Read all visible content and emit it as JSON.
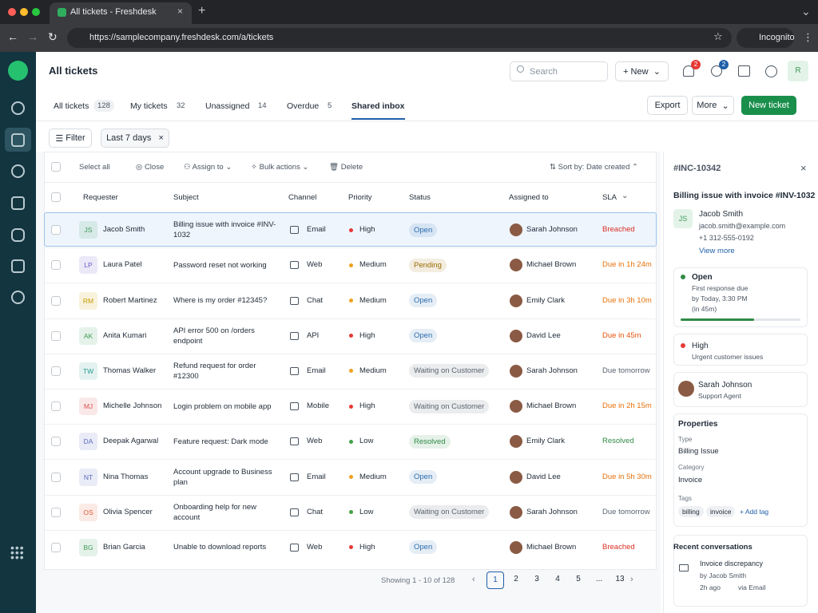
{
  "browser": {
    "tab_title": "All tickets - Freshdesk",
    "url": "https://samplecompany.freshdesk.com/a/tickets",
    "profile": "Incognito"
  },
  "header": {
    "title": "All tickets",
    "search_placeholder": "Search",
    "new_button": "+ New",
    "notifications": "2",
    "messages": "2",
    "avatar": "R"
  },
  "tabs": [
    {
      "label": "All tickets",
      "count": "128"
    },
    {
      "label": "My tickets",
      "count": "32"
    },
    {
      "label": "Unassigned",
      "count": "14"
    },
    {
      "label": "Overdue",
      "count": "5"
    },
    {
      "label": "Shared inbox"
    }
  ],
  "actions": {
    "export": "Export",
    "more": "More",
    "new_ticket": "New ticket"
  },
  "filters": {
    "filter": "Filter",
    "range": "Last 7 days"
  },
  "toolbar": {
    "select_all": "Select all",
    "close": "Close",
    "assign": "Assign to",
    "bulk": "Bulk actions",
    "delete": "Delete",
    "sort": "Sort by: Date created"
  },
  "columns": [
    "Requester",
    "Subject",
    "Channel",
    "Priority",
    "Status",
    "Assigned to",
    "SLA"
  ],
  "rows": [
    {
      "initials": "JS",
      "requester": "Jacob Smith",
      "subject": "Billing issue with invoice #INV-1032",
      "channel": "Email",
      "priority": "High",
      "status": "Open",
      "assignee": "Sarah Johnson",
      "sla": "Breached",
      "avatar_color": "#3f9a5a",
      "priority_color": "#e53935",
      "status_color": "#2b6cb0",
      "sla_color": "#d93025"
    },
    {
      "initials": "LP",
      "requester": "Laura Patel",
      "subject": "Password reset not working",
      "channel": "Web",
      "priority": "Medium",
      "status": "Pending",
      "assignee": "Michael Brown",
      "sla": "Due in 1h 24m",
      "avatar_color": "#6a5acd",
      "priority_color": "#f0a020",
      "status_color": "#9a6b00",
      "sla_color": "#e8710a"
    },
    {
      "initials": "RM",
      "requester": "Robert Martinez",
      "subject": "Where is my order #12345?",
      "channel": "Chat",
      "priority": "Medium",
      "status": "Open",
      "assignee": "Emily Clark",
      "sla": "Due in 3h 10m",
      "avatar_color": "#c99a00",
      "priority_color": "#f0a020",
      "status_color": "#2b6cb0",
      "sla_color": "#e8710a"
    },
    {
      "initials": "AK",
      "requester": "Anita Kumari",
      "subject": "API error 500 on /orders endpoint",
      "channel": "API",
      "priority": "High",
      "status": "Open",
      "assignee": "David Lee",
      "sla": "Due in 45m",
      "avatar_color": "#3f9a5a",
      "priority_color": "#e53935",
      "status_color": "#2b6cb0",
      "sla_color": "#e8530a"
    },
    {
      "initials": "TW",
      "requester": "Thomas Walker",
      "subject": "Refund request for order #12300",
      "channel": "Email",
      "priority": "Medium",
      "status": "Waiting on Customer",
      "assignee": "Sarah Johnson",
      "sla": "Due tomorrow",
      "avatar_color": "#2a9d8f",
      "priority_color": "#f0a020",
      "status_color": "#5a6470",
      "sla_color": "#5a6470"
    },
    {
      "initials": "MJ",
      "requester": "Michelle Johnson",
      "subject": "Login problem on mobile app",
      "channel": "Mobile",
      "priority": "High",
      "status": "Waiting on Customer",
      "assignee": "Michael Brown",
      "sla": "Due in 2h 15m",
      "avatar_color": "#d9534f",
      "priority_color": "#e53935",
      "status_color": "#5a6470",
      "sla_color": "#e8710a"
    },
    {
      "initials": "DA",
      "requester": "Deepak Agarwal",
      "subject": "Feature request: Dark mode",
      "channel": "Web",
      "priority": "Low",
      "status": "Resolved",
      "assignee": "Emily Clark",
      "sla": "Resolved",
      "avatar_color": "#5b6bbf",
      "priority_color": "#43a047",
      "status_color": "#2f8a46",
      "sla_color": "#2f8a46"
    },
    {
      "initials": "NT",
      "requester": "Nina Thomas",
      "subject": "Account upgrade to Business plan",
      "channel": "Email",
      "priority": "Medium",
      "status": "Open",
      "assignee": "David Lee",
      "sla": "Due in 5h 30m",
      "avatar_color": "#5b6bbf",
      "priority_color": "#f0a020",
      "status_color": "#2b6cb0",
      "sla_color": "#e8710a"
    },
    {
      "initials": "OS",
      "requester": "Olivia Spencer",
      "subject": "Onboarding help for new account",
      "channel": "Chat",
      "priority": "Low",
      "status": "Waiting on Customer",
      "assignee": "Sarah Johnson",
      "sla": "Due tomorrow",
      "avatar_color": "#e0603a",
      "priority_color": "#43a047",
      "status_color": "#5a6470",
      "sla_color": "#5a6470"
    },
    {
      "initials": "BG",
      "requester": "Brian Garcia",
      "subject": "Unable to download reports",
      "channel": "Web",
      "priority": "High",
      "status": "Open",
      "assignee": "Michael Brown",
      "sla": "Breached",
      "avatar_color": "#3f9a5a",
      "priority_color": "#e53935",
      "status_color": "#2b6cb0",
      "sla_color": "#d93025"
    }
  ],
  "pagination": {
    "summary": "Showing 1 - 10 of 128",
    "pages": [
      "1",
      "2",
      "3",
      "4",
      "5",
      "...",
      "13"
    ]
  },
  "detail": {
    "id": "#INC-10342",
    "subject": "Billing issue with invoice #INV-1032",
    "contact": {
      "initials": "JS",
      "name": "Jacob Smith",
      "email": "jacob.smith@example.com",
      "phone": "+1 312-555-0192",
      "link": "View more"
    },
    "status": {
      "label": "Open",
      "line1": "First response due",
      "line2": "by Today, 3:30 PM",
      "line3": "(in 45m)"
    },
    "priority": {
      "label": "High",
      "note": "Urgent customer issues"
    },
    "agent": {
      "name": "Sarah Johnson",
      "role": "Support Agent"
    },
    "properties": {
      "title": "Properties",
      "type_label": "Type",
      "type": "Billing Issue",
      "category_label": "Category",
      "category": "Invoice",
      "tags_label": "Tags",
      "tags": [
        "billing",
        "invoice"
      ],
      "add_tag": "+ Add tag"
    },
    "recent": {
      "title": "Recent conversations",
      "subject": "Invoice discrepancy",
      "by": "by Jacob Smith",
      "time": "2h ago",
      "via": "via Email"
    }
  }
}
